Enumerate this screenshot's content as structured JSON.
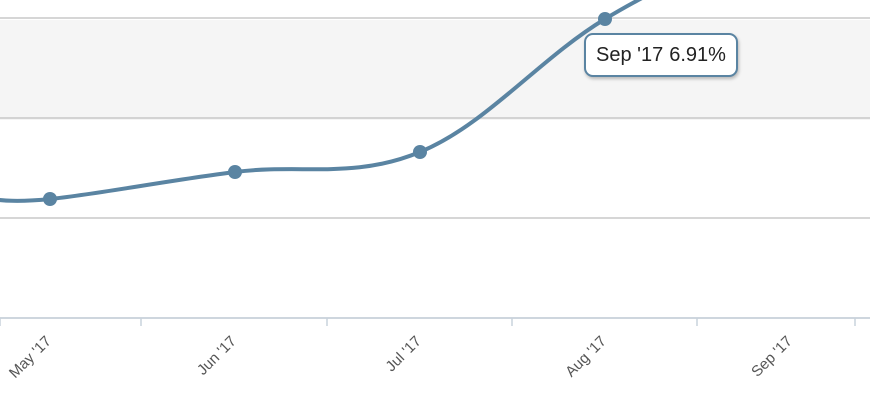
{
  "chart_data": {
    "type": "line",
    "x_unit": "months",
    "categories": [
      "May '17",
      "Jun '17",
      "Jul '17",
      "Aug '17",
      "Sep '17"
    ],
    "series": [
      {
        "values": [
          4.19,
          4.46,
          4.66,
          5.99,
          6.91
        ],
        "color": "#5a84a2"
      }
    ],
    "y_gridlines": [
      3.0,
      4.0,
      5.0,
      6.0,
      7.0
    ],
    "ylim": [
      3.0,
      7.2
    ],
    "grid": true,
    "tooltip": {
      "category": "Sep '17",
      "value": "6.91%"
    }
  }
}
